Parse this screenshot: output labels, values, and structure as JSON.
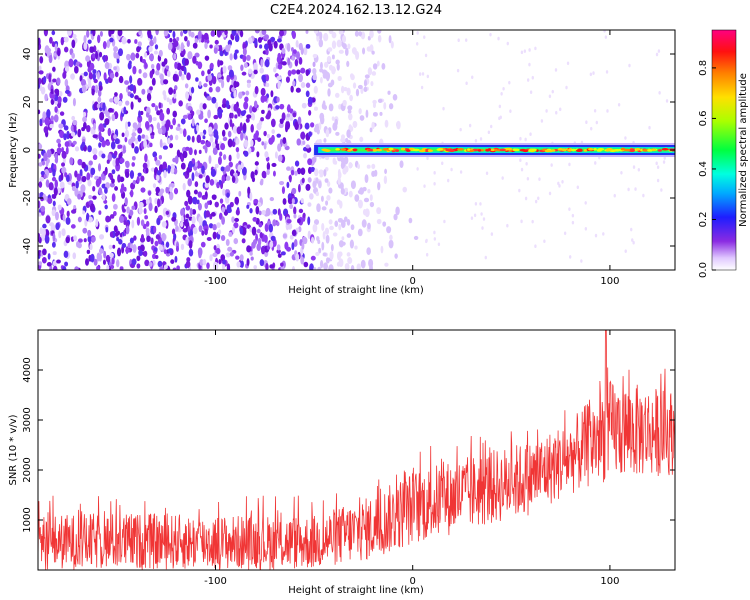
{
  "title": "C2E4.2024.162.13.12.G24",
  "chart_data": [
    {
      "type": "heatmap",
      "title": "C2E4.2024.162.13.12.G24",
      "xlabel": "Height of straight line (km)",
      "ylabel": "Frequency (Hz)",
      "xlim": [
        -190,
        133
      ],
      "ylim": [
        -50,
        50
      ],
      "xticks": [
        -100,
        0,
        100
      ],
      "yticks": [
        -40,
        -20,
        0,
        20,
        40
      ],
      "colorbar": {
        "label": "Normalized spectral amplitude",
        "range": [
          0.0,
          0.95
        ],
        "ticks": [
          0.0,
          0.2,
          0.4,
          0.6,
          0.8
        ],
        "colormap": "rainbow (white → violet → blue → cyan → green → yellow → red → magenta)"
      },
      "features": [
        {
          "name": "broadband noise",
          "x_range": [
            -190,
            -40
          ],
          "y_range": [
            -50,
            50
          ],
          "amplitude": 0.1
        },
        {
          "name": "tone line",
          "x_range": [
            -50,
            133
          ],
          "y": 0,
          "amplitude_range": [
            0.4,
            0.85
          ]
        }
      ]
    },
    {
      "type": "line",
      "xlabel": "Height of straight line (km)",
      "ylabel": "SNR (10 * v/v)",
      "xlim": [
        -190,
        133
      ],
      "ylim": [
        0,
        4800
      ],
      "xticks": [
        -100,
        0,
        100
      ],
      "yticks": [
        1000,
        2000,
        3000,
        4000
      ],
      "color": "#f03535",
      "trend": [
        {
          "x": -190,
          "y_low": 0,
          "y_high": 1100,
          "y_mean": 600
        },
        {
          "x": -150,
          "y_low": 0,
          "y_high": 1150,
          "y_mean": 600
        },
        {
          "x": -100,
          "y_low": 0,
          "y_high": 1100,
          "y_mean": 550
        },
        {
          "x": -50,
          "y_low": 0,
          "y_high": 1100,
          "y_mean": 550
        },
        {
          "x": -20,
          "y_low": 200,
          "y_high": 1500,
          "y_mean": 800
        },
        {
          "x": 0,
          "y_low": 500,
          "y_high": 2000,
          "y_mean": 1200
        },
        {
          "x": 30,
          "y_low": 800,
          "y_high": 2300,
          "y_mean": 1600
        },
        {
          "x": 60,
          "y_low": 1100,
          "y_high": 2600,
          "y_mean": 1900
        },
        {
          "x": 80,
          "y_low": 1500,
          "y_high": 3000,
          "y_mean": 2300
        },
        {
          "x": 100,
          "y_low": 1800,
          "y_high": 3800,
          "y_mean": 2900
        },
        {
          "x": 133,
          "y_low": 1900,
          "y_high": 3600,
          "y_mean": 2800
        }
      ],
      "peak": {
        "x": 98,
        "y": 4800
      }
    }
  ]
}
